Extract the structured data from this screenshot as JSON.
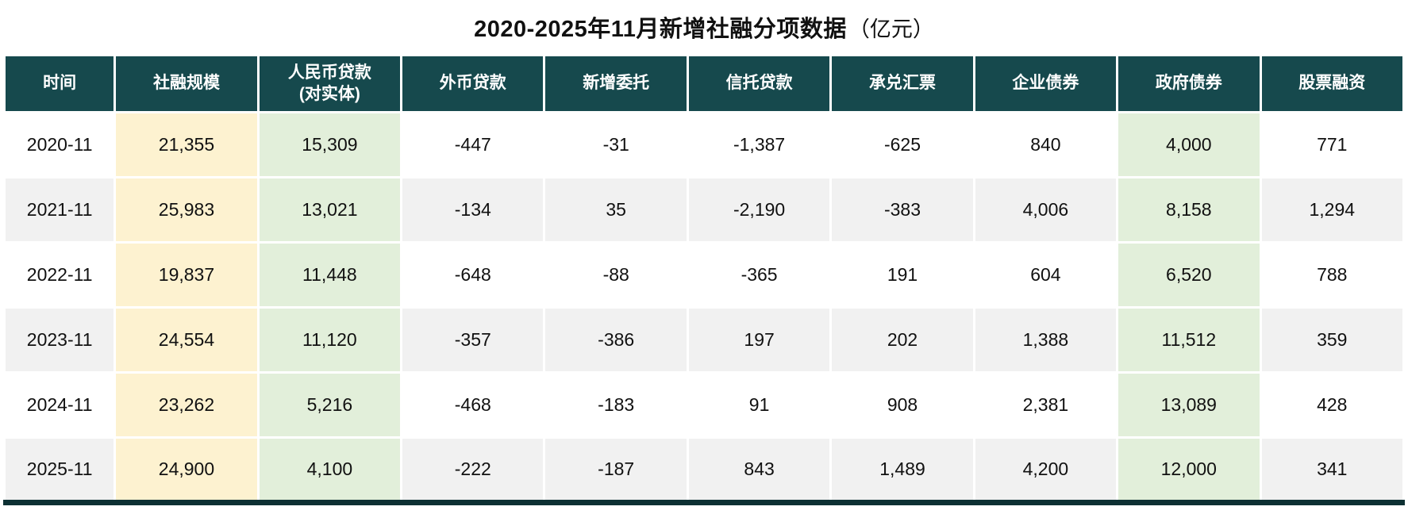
{
  "title": {
    "main": "2020-2025年11月新增社融分项数据",
    "unit": "（亿元）"
  },
  "colors": {
    "header_bg": "#16494d",
    "highlight_yellow": "#fdf2d0",
    "highlight_green": "#e2efda",
    "row_alt": "#f1f1f1",
    "bottom_bar": "#0d3033"
  },
  "chart_data": {
    "type": "table",
    "title": "2020-2025年11月新增社融分项数据（亿元）",
    "columns": [
      "时间",
      "社融规模",
      "人民币贷款\n(对实体)",
      "外币贷款",
      "新增委托",
      "信托贷款",
      "承兑汇票",
      "企业债券",
      "政府债券",
      "股票融资"
    ],
    "column_highlights": [
      "none",
      "yellow",
      "green",
      "none",
      "none",
      "none",
      "none",
      "none",
      "green",
      "none"
    ],
    "rows": [
      [
        "2020-11",
        "21,355",
        "15,309",
        "-447",
        "-31",
        "-1,387",
        "-625",
        "840",
        "4,000",
        "771"
      ],
      [
        "2021-11",
        "25,983",
        "13,021",
        "-134",
        "35",
        "-2,190",
        "-383",
        "4,006",
        "8,158",
        "1,294"
      ],
      [
        "2022-11",
        "19,837",
        "11,448",
        "-648",
        "-88",
        "-365",
        "191",
        "604",
        "6,520",
        "788"
      ],
      [
        "2023-11",
        "24,554",
        "11,120",
        "-357",
        "-386",
        "197",
        "202",
        "1,388",
        "11,512",
        "359"
      ],
      [
        "2024-11",
        "23,262",
        "5,216",
        "-468",
        "-183",
        "91",
        "908",
        "2,381",
        "13,089",
        "428"
      ],
      [
        "2025-11",
        "24,900",
        "4,100",
        "-222",
        "-187",
        "843",
        "1,489",
        "4,200",
        "12,000",
        "341"
      ]
    ]
  }
}
